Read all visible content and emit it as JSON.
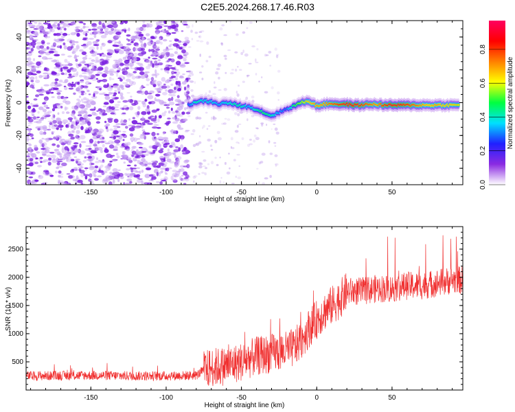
{
  "title": "C2E5.2024.268.17.46.R03",
  "chart_data": [
    {
      "type": "heatmap",
      "xlabel": "Height of straight line (km)",
      "ylabel": "Frequency (Hz)",
      "xlim": [
        -193,
        97
      ],
      "ylim": [
        -50,
        50
      ],
      "xticks": [
        -150,
        -100,
        -50,
        0,
        50
      ],
      "yticks": [
        -40,
        -20,
        0,
        20,
        40
      ],
      "colorbar": {
        "label": "Normalized spectral amplitude",
        "range": [
          0,
          0.97
        ],
        "ticks": [
          0.0,
          0.2,
          0.4,
          0.6,
          0.8
        ],
        "colormap": [
          "#ffffff",
          "#8b2be2",
          "#2020ff",
          "#00e0ff",
          "#00ff40",
          "#ffff00",
          "#ff8000",
          "#ff0000",
          "#ff0060"
        ]
      },
      "noise_region": {
        "x": [
          -193,
          -85
        ],
        "level": 0.1
      },
      "ridge": {
        "x": [
          -85,
          -80,
          -75,
          -70,
          -65,
          -60,
          -55,
          -50,
          -45,
          -40,
          -35,
          -30,
          -25,
          -20,
          -15,
          -10,
          -5,
          0,
          5,
          10,
          15,
          20,
          25,
          30,
          35,
          40,
          45,
          50,
          55,
          60,
          65,
          70,
          75,
          80,
          85,
          90,
          95
        ],
        "frequency": [
          -1.5,
          0.5,
          1,
          0.5,
          -1,
          0,
          -1,
          -2,
          -2.5,
          -4,
          -6,
          -8,
          -6,
          -4,
          -2,
          0,
          1,
          -2,
          -1,
          -0.5,
          -1,
          -1,
          -1.5,
          -1.5,
          -1,
          -1,
          -1.5,
          -1.5,
          -1.5,
          -1.5,
          -1.5,
          -1.5,
          -1.5,
          -1.5,
          -1.5,
          -1.5,
          -1.5
        ],
        "amplitude": [
          0.3,
          0.45,
          0.4,
          0.4,
          0.35,
          0.4,
          0.45,
          0.45,
          0.35,
          0.45,
          0.5,
          0.45,
          0.35,
          0.3,
          0.5,
          0.6,
          0.7,
          0.75,
          0.75,
          0.8,
          0.85,
          0.9,
          0.9,
          0.85,
          0.8,
          0.75,
          0.85,
          0.9,
          0.9,
          0.85,
          0.8,
          0.75,
          0.7,
          0.75,
          0.7,
          0.7,
          0.65
        ]
      }
    },
    {
      "type": "line",
      "xlabel": "Height of straight line (km)",
      "ylabel": "SNR (10 * v/v)",
      "xlim": [
        -193,
        97
      ],
      "ylim": [
        0,
        2900
      ],
      "xticks": [
        -150,
        -100,
        -50,
        0,
        50
      ],
      "yticks": [
        500,
        1000,
        1500,
        2000,
        2500
      ],
      "color": "#f03030",
      "series": [
        {
          "x": [
            -193,
            -150,
            -120,
            -100,
            -80,
            -75,
            -70,
            -60,
            -50,
            -40,
            -30,
            -20,
            -15,
            -10,
            -5,
            0,
            5,
            10,
            15,
            20,
            30,
            40,
            50,
            60,
            70,
            80,
            90,
            95
          ],
          "values": [
            250,
            260,
            250,
            250,
            260,
            350,
            400,
            430,
            500,
            600,
            650,
            700,
            750,
            900,
            1100,
            1250,
            1400,
            1500,
            1600,
            1750,
            1750,
            1800,
            1800,
            1850,
            1850,
            1900,
            1950,
            1950
          ]
        }
      ]
    }
  ]
}
